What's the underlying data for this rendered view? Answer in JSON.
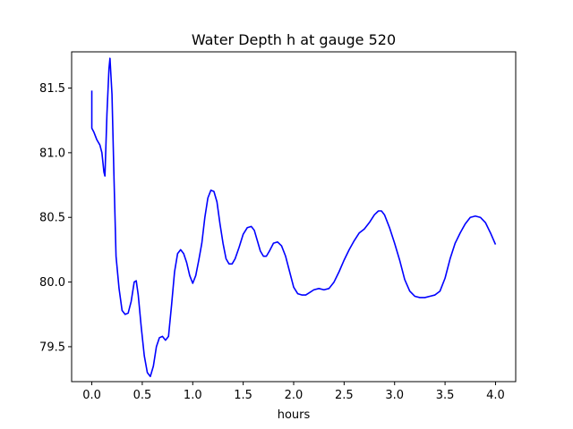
{
  "chart_data": {
    "type": "line",
    "title": "Water Depth h at gauge 520",
    "xlabel": "hours",
    "ylabel": "",
    "xlim": [
      -0.2,
      4.2
    ],
    "ylim": [
      79.23,
      81.78
    ],
    "xticks": [
      0.0,
      0.5,
      1.0,
      1.5,
      2.0,
      2.5,
      3.0,
      3.5,
      4.0
    ],
    "xtick_labels": [
      "0.0",
      "0.5",
      "1.0",
      "1.5",
      "2.0",
      "2.5",
      "3.0",
      "3.5",
      "4.0"
    ],
    "yticks": [
      79.5,
      80.0,
      80.5,
      81.0,
      81.5
    ],
    "ytick_labels": [
      "79.5",
      "80.0",
      "80.5",
      "81.0",
      "81.5"
    ],
    "grid": false,
    "series": [
      {
        "color": "#0000ff",
        "points": [
          [
            0.0,
            81.48
          ],
          [
            0.0,
            81.19
          ],
          [
            0.02,
            81.16
          ],
          [
            0.05,
            81.1
          ],
          [
            0.08,
            81.06
          ],
          [
            0.1,
            81.0
          ],
          [
            0.12,
            80.85
          ],
          [
            0.13,
            80.82
          ],
          [
            0.15,
            81.3
          ],
          [
            0.17,
            81.65
          ],
          [
            0.18,
            81.73
          ],
          [
            0.2,
            81.45
          ],
          [
            0.22,
            80.8
          ],
          [
            0.24,
            80.2
          ],
          [
            0.27,
            79.95
          ],
          [
            0.3,
            79.78
          ],
          [
            0.33,
            79.75
          ],
          [
            0.36,
            79.76
          ],
          [
            0.39,
            79.85
          ],
          [
            0.42,
            80.0
          ],
          [
            0.44,
            80.01
          ],
          [
            0.46,
            79.9
          ],
          [
            0.49,
            79.65
          ],
          [
            0.52,
            79.43
          ],
          [
            0.55,
            79.3
          ],
          [
            0.58,
            79.27
          ],
          [
            0.61,
            79.35
          ],
          [
            0.64,
            79.5
          ],
          [
            0.67,
            79.57
          ],
          [
            0.7,
            79.58
          ],
          [
            0.73,
            79.55
          ],
          [
            0.76,
            79.58
          ],
          [
            0.79,
            79.82
          ],
          [
            0.82,
            80.08
          ],
          [
            0.85,
            80.22
          ],
          [
            0.88,
            80.25
          ],
          [
            0.91,
            80.22
          ],
          [
            0.94,
            80.15
          ],
          [
            0.97,
            80.05
          ],
          [
            1.0,
            79.99
          ],
          [
            1.03,
            80.05
          ],
          [
            1.06,
            80.17
          ],
          [
            1.09,
            80.3
          ],
          [
            1.12,
            80.5
          ],
          [
            1.15,
            80.65
          ],
          [
            1.18,
            80.71
          ],
          [
            1.21,
            80.7
          ],
          [
            1.24,
            80.62
          ],
          [
            1.27,
            80.45
          ],
          [
            1.3,
            80.3
          ],
          [
            1.33,
            80.18
          ],
          [
            1.36,
            80.14
          ],
          [
            1.39,
            80.14
          ],
          [
            1.42,
            80.18
          ],
          [
            1.46,
            80.27
          ],
          [
            1.5,
            80.37
          ],
          [
            1.54,
            80.42
          ],
          [
            1.58,
            80.43
          ],
          [
            1.61,
            80.4
          ],
          [
            1.64,
            80.32
          ],
          [
            1.67,
            80.24
          ],
          [
            1.7,
            80.2
          ],
          [
            1.73,
            80.2
          ],
          [
            1.76,
            80.24
          ],
          [
            1.8,
            80.3
          ],
          [
            1.84,
            80.31
          ],
          [
            1.88,
            80.28
          ],
          [
            1.92,
            80.2
          ],
          [
            1.96,
            80.08
          ],
          [
            2.0,
            79.96
          ],
          [
            2.04,
            79.91
          ],
          [
            2.08,
            79.9
          ],
          [
            2.12,
            79.9
          ],
          [
            2.16,
            79.92
          ],
          [
            2.2,
            79.94
          ],
          [
            2.25,
            79.95
          ],
          [
            2.3,
            79.94
          ],
          [
            2.35,
            79.95
          ],
          [
            2.4,
            80.0
          ],
          [
            2.45,
            80.08
          ],
          [
            2.5,
            80.17
          ],
          [
            2.55,
            80.25
          ],
          [
            2.6,
            80.32
          ],
          [
            2.65,
            80.38
          ],
          [
            2.7,
            80.41
          ],
          [
            2.75,
            80.46
          ],
          [
            2.8,
            80.52
          ],
          [
            2.84,
            80.55
          ],
          [
            2.87,
            80.55
          ],
          [
            2.9,
            80.52
          ],
          [
            2.95,
            80.42
          ],
          [
            3.0,
            80.3
          ],
          [
            3.05,
            80.17
          ],
          [
            3.1,
            80.02
          ],
          [
            3.15,
            79.93
          ],
          [
            3.2,
            79.89
          ],
          [
            3.25,
            79.88
          ],
          [
            3.3,
            79.88
          ],
          [
            3.35,
            79.89
          ],
          [
            3.4,
            79.9
          ],
          [
            3.45,
            79.93
          ],
          [
            3.5,
            80.03
          ],
          [
            3.55,
            80.18
          ],
          [
            3.6,
            80.3
          ],
          [
            3.65,
            80.38
          ],
          [
            3.7,
            80.45
          ],
          [
            3.75,
            80.5
          ],
          [
            3.8,
            80.51
          ],
          [
            3.85,
            80.5
          ],
          [
            3.9,
            80.46
          ],
          [
            3.95,
            80.38
          ],
          [
            4.0,
            80.29
          ]
        ]
      }
    ]
  }
}
